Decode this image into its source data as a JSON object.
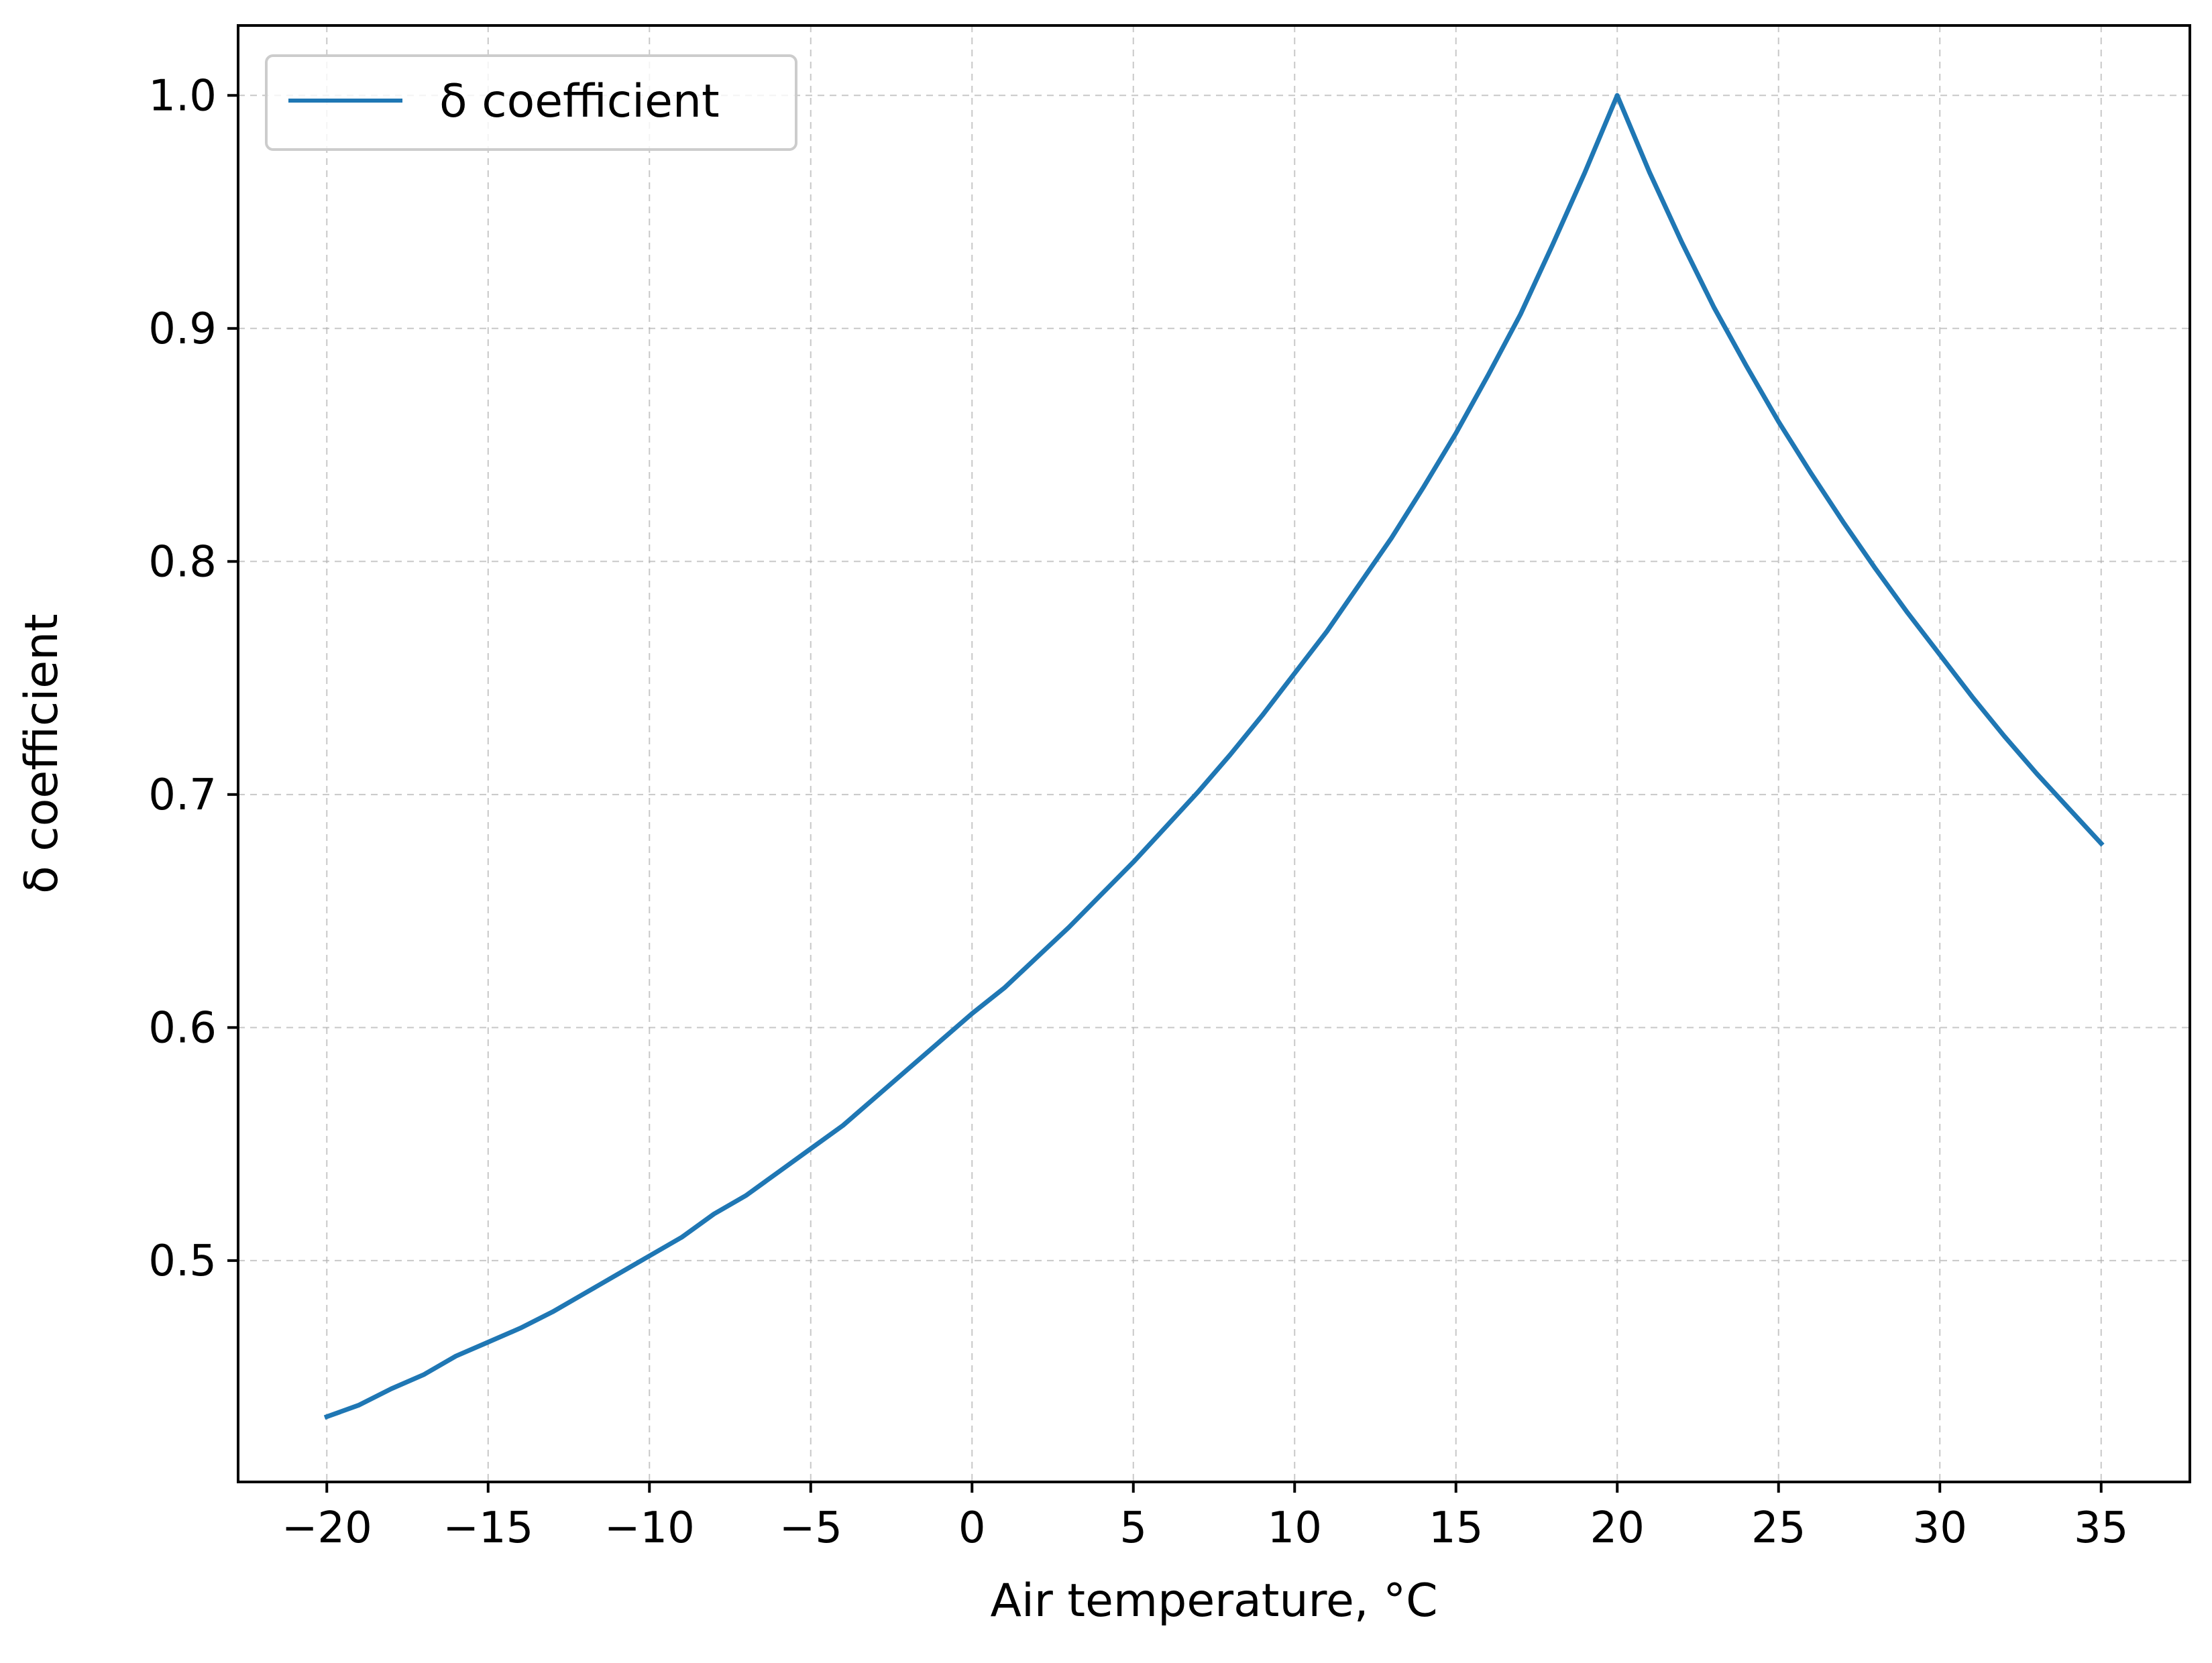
{
  "chart_data": {
    "type": "line",
    "xlabel": "Air temperature, °C",
    "ylabel": "δ coefficient",
    "xlim": [
      -22.75,
      37.75
    ],
    "ylim": [
      0.405,
      1.03
    ],
    "x_ticks": [
      -20,
      -15,
      -10,
      -5,
      0,
      5,
      10,
      15,
      20,
      25,
      30,
      35
    ],
    "x_tick_labels": [
      "−20",
      "−15",
      "−10",
      "−5",
      "0",
      "5",
      "10",
      "15",
      "20",
      "25",
      "30",
      "35"
    ],
    "y_ticks": [
      0.5,
      0.6,
      0.7,
      0.8,
      0.9,
      1.0
    ],
    "y_tick_labels": [
      "0.5",
      "0.6",
      "0.7",
      "0.8",
      "0.9",
      "1.0"
    ],
    "grid": true,
    "legend_position": "upper-left",
    "series": [
      {
        "name": "δ coefficient",
        "color": "#1f77b4",
        "x": [
          -20,
          -19,
          -18,
          -17,
          -16,
          -15,
          -14,
          -13,
          -12,
          -11,
          -10,
          -9,
          -8,
          -7,
          -6,
          -5,
          -4,
          -3,
          -2,
          -1,
          0,
          1,
          2,
          3,
          4,
          5,
          6,
          7,
          8,
          9,
          10,
          11,
          12,
          13,
          14,
          15,
          16,
          17,
          18,
          19,
          20,
          21,
          22,
          23,
          24,
          25,
          26,
          27,
          28,
          29,
          30,
          31,
          32,
          33,
          34,
          35
        ],
        "y": [
          0.433,
          0.438,
          0.445,
          0.451,
          0.459,
          0.465,
          0.471,
          0.478,
          0.486,
          0.494,
          0.502,
          0.51,
          0.52,
          0.528,
          0.538,
          0.548,
          0.558,
          0.57,
          0.582,
          0.594,
          0.606,
          0.617,
          0.63,
          0.643,
          0.657,
          0.671,
          0.686,
          0.701,
          0.717,
          0.734,
          0.752,
          0.77,
          0.79,
          0.81,
          0.832,
          0.855,
          0.88,
          0.906,
          0.936,
          0.967,
          1.0,
          0.967,
          0.937,
          0.909,
          0.884,
          0.86,
          0.838,
          0.817,
          0.797,
          0.778,
          0.76,
          0.742,
          0.725,
          0.709,
          0.694,
          0.679
        ]
      }
    ]
  }
}
